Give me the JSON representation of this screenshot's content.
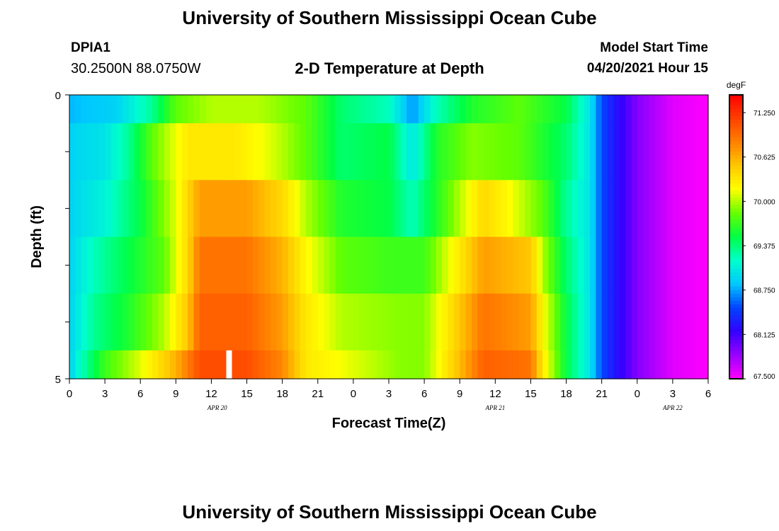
{
  "header": {
    "title": "University of Southern Mississippi Ocean Cube",
    "station": "DPIA1",
    "coordinates": "30.2500N  88.0750W",
    "model_start_label": "Model Start Time",
    "model_start_value": "04/20/2021 Hour 15"
  },
  "footer": {
    "title": "University of Southern Mississippi Ocean Cube"
  },
  "chart_data": {
    "type": "heatmap",
    "title": "2-D Temperature at Depth",
    "xlabel": "Forecast Time(Z)",
    "ylabel": "Depth (ft)",
    "units": "degF",
    "color_range": [
      67.5,
      71.5
    ],
    "x_hours": [
      0,
      3,
      6,
      9,
      12,
      15,
      18,
      21,
      24,
      27,
      30,
      33,
      36,
      39,
      42,
      45,
      48,
      51,
      54
    ],
    "x_tick_labels": [
      "0",
      "3",
      "6",
      "9",
      "12",
      "15",
      "18",
      "21",
      "0",
      "3",
      "6",
      "9",
      "12",
      "15",
      "18",
      "21",
      "0",
      "3",
      "6"
    ],
    "x_range": [
      0,
      54
    ],
    "date_labels": [
      {
        "text": "APR 20",
        "hour": 12.5
      },
      {
        "text": "APR 21",
        "hour": 36.0
      },
      {
        "text": "APR 22",
        "hour": 51.0
      }
    ],
    "y_range": [
      0,
      5
    ],
    "y_tick_labels": [
      "0",
      "5"
    ],
    "depth_layers": [
      "0-0.5",
      "0.5-1.5",
      "1.5-2.5",
      "2.5-3.5",
      "3.5-4.5",
      "4.5-5"
    ],
    "colorbar_labels": [
      "71.250",
      "70.625",
      "70.000",
      "69.375",
      "68.750",
      "68.125",
      "67.500"
    ],
    "colorbar_values": [
      71.25,
      70.625,
      70.0,
      69.375,
      68.75,
      68.125,
      67.5
    ],
    "rows": [
      {
        "layer": "0-0.5",
        "profile": [
          [
            0,
            68.8
          ],
          [
            4,
            68.9
          ],
          [
            7,
            69.3
          ],
          [
            9,
            69.8
          ],
          [
            12,
            70.0
          ],
          [
            16,
            70.0
          ],
          [
            20,
            69.8
          ],
          [
            23,
            69.4
          ],
          [
            27,
            69.2
          ],
          [
            29,
            68.7
          ],
          [
            31,
            69.2
          ],
          [
            34,
            69.6
          ],
          [
            38,
            69.8
          ],
          [
            42,
            69.5
          ],
          [
            44,
            69.0
          ],
          [
            45,
            68.5
          ],
          [
            48,
            67.9
          ],
          [
            51,
            67.6
          ],
          [
            54,
            67.5
          ]
        ]
      },
      {
        "layer": "0.5-1.5",
        "profile": [
          [
            0,
            68.9
          ],
          [
            3,
            69.0
          ],
          [
            5,
            69.3
          ],
          [
            7,
            69.8
          ],
          [
            10,
            70.3
          ],
          [
            14,
            70.3
          ],
          [
            17,
            70.1
          ],
          [
            20,
            69.8
          ],
          [
            23,
            69.4
          ],
          [
            27,
            69.5
          ],
          [
            29,
            69.0
          ],
          [
            31,
            69.6
          ],
          [
            34,
            69.9
          ],
          [
            38,
            69.8
          ],
          [
            42,
            69.4
          ],
          [
            44,
            69.0
          ],
          [
            45,
            68.5
          ],
          [
            48,
            67.9
          ],
          [
            51,
            67.6
          ],
          [
            54,
            67.5
          ]
        ]
      },
      {
        "layer": "1.5-2.5",
        "profile": [
          [
            0,
            68.9
          ],
          [
            3,
            69.1
          ],
          [
            6,
            69.5
          ],
          [
            9,
            70.1
          ],
          [
            11,
            70.7
          ],
          [
            15,
            70.7
          ],
          [
            18,
            70.4
          ],
          [
            20,
            70.0
          ],
          [
            23,
            69.6
          ],
          [
            27,
            69.5
          ],
          [
            29,
            69.2
          ],
          [
            31,
            69.6
          ],
          [
            35,
            70.4
          ],
          [
            37,
            70.2
          ],
          [
            40,
            69.8
          ],
          [
            42,
            69.3
          ],
          [
            44,
            69.0
          ],
          [
            45,
            68.5
          ],
          [
            48,
            67.9
          ],
          [
            51,
            67.6
          ],
          [
            54,
            67.5
          ]
        ]
      },
      {
        "layer": "2.5-3.5",
        "profile": [
          [
            0,
            68.9
          ],
          [
            2,
            69.2
          ],
          [
            5,
            69.5
          ],
          [
            8,
            69.8
          ],
          [
            10,
            70.4
          ],
          [
            11,
            70.9
          ],
          [
            15,
            70.9
          ],
          [
            18,
            70.6
          ],
          [
            20,
            70.2
          ],
          [
            23,
            69.8
          ],
          [
            27,
            69.7
          ],
          [
            30,
            69.7
          ],
          [
            35,
            70.7
          ],
          [
            39,
            70.5
          ],
          [
            40,
            70.0
          ],
          [
            42,
            69.4
          ],
          [
            44,
            69.0
          ],
          [
            45,
            68.5
          ],
          [
            48,
            67.9
          ],
          [
            51,
            67.6
          ],
          [
            54,
            67.5
          ]
        ]
      },
      {
        "layer": "3.5-4.5",
        "profile": [
          [
            0,
            68.9
          ],
          [
            2,
            69.3
          ],
          [
            5,
            69.6
          ],
          [
            8,
            70.0
          ],
          [
            10,
            70.5
          ],
          [
            11,
            71.0
          ],
          [
            15,
            71.0
          ],
          [
            18,
            70.7
          ],
          [
            20,
            70.3
          ],
          [
            23,
            70.0
          ],
          [
            28,
            69.9
          ],
          [
            30,
            69.9
          ],
          [
            35,
            70.9
          ],
          [
            39,
            70.7
          ],
          [
            40,
            70.2
          ],
          [
            42,
            69.5
          ],
          [
            44,
            69.0
          ],
          [
            45,
            68.5
          ],
          [
            48,
            67.9
          ],
          [
            51,
            67.6
          ],
          [
            54,
            67.5
          ]
        ]
      },
      {
        "layer": "4.5-5",
        "profile": [
          [
            0,
            68.9
          ],
          [
            1,
            69.2
          ],
          [
            3,
            69.7
          ],
          [
            6,
            70.1
          ],
          [
            9,
            70.6
          ],
          [
            11,
            71.1
          ],
          [
            15,
            71.1
          ],
          [
            18,
            70.8
          ],
          [
            20,
            70.3
          ],
          [
            24,
            70.1
          ],
          [
            28,
            69.9
          ],
          [
            30,
            69.9
          ],
          [
            35,
            71.0
          ],
          [
            39,
            70.9
          ],
          [
            40,
            70.3
          ],
          [
            42,
            69.5
          ],
          [
            44,
            69.0
          ],
          [
            45,
            68.5
          ],
          [
            48,
            67.9
          ],
          [
            51,
            67.6
          ],
          [
            54,
            67.5
          ]
        ]
      }
    ],
    "marker": {
      "hour": 13.5,
      "layer": "4.5-5"
    },
    "colors": {
      "palette": [
        "#ff00ff",
        "#9900ff",
        "#3300ff",
        "#0044ff",
        "#00c8ff",
        "#00ffcc",
        "#00ff44",
        "#66ff00",
        "#ffff00",
        "#ffc800",
        "#ff8000",
        "#ff4000",
        "#ff0000"
      ],
      "marker": "#ffffff",
      "frame": "#000000"
    }
  }
}
